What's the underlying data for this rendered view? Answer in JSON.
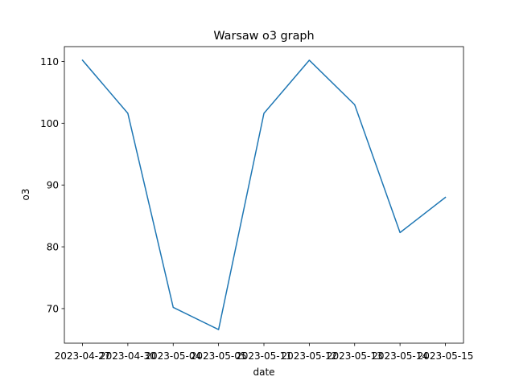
{
  "chart_data": {
    "type": "line",
    "title": "Warsaw o3 graph",
    "xlabel": "date",
    "ylabel": "o3",
    "x": [
      "2023-04-27",
      "2023-04-30",
      "2023-05-04",
      "2023-05-05",
      "2023-05-11",
      "2023-05-12",
      "2023-05-13",
      "2023-05-14",
      "2023-05-15"
    ],
    "series": [
      {
        "values": [
          110.2,
          101.6,
          70.2,
          66.6,
          101.6,
          110.2,
          103.0,
          82.3,
          88.0
        ],
        "color": "#1f77b4"
      }
    ],
    "ylim": [
      64.4,
      112.4
    ],
    "yticks": [
      70,
      80,
      90,
      100,
      110
    ],
    "grid": false,
    "legend": "none"
  }
}
